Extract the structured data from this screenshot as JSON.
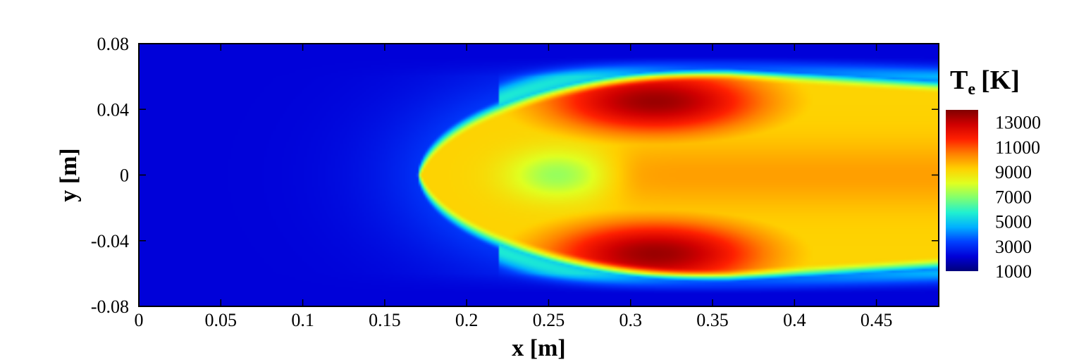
{
  "chart_data": {
    "type": "heatmap",
    "xlabel": "x [m]",
    "ylabel": "y [m]",
    "xlim": [
      0,
      0.488
    ],
    "ylim": [
      -0.08,
      0.08
    ],
    "x_ticks": [
      {
        "value": 0,
        "label": "0"
      },
      {
        "value": 0.05,
        "label": "0.05"
      },
      {
        "value": 0.1,
        "label": "0.1"
      },
      {
        "value": 0.15,
        "label": "0.15"
      },
      {
        "value": 0.2,
        "label": "0.2"
      },
      {
        "value": 0.25,
        "label": "0.25"
      },
      {
        "value": 0.3,
        "label": "0.3"
      },
      {
        "value": 0.35,
        "label": "0.35"
      },
      {
        "value": 0.4,
        "label": "0.4"
      },
      {
        "value": 0.45,
        "label": "0.45"
      }
    ],
    "y_ticks": [
      {
        "value": 0.08,
        "label": "0.08"
      },
      {
        "value": 0.04,
        "label": "0.04"
      },
      {
        "value": 0,
        "label": "0"
      },
      {
        "value": -0.04,
        "label": "-0.04"
      },
      {
        "value": -0.08,
        "label": "-0.08"
      }
    ],
    "colorbar": {
      "title": "T",
      "title_sub": "e",
      "title_unit": "[K]",
      "min": 1000,
      "max": 14000,
      "ticks": [
        {
          "value": 13000,
          "label": "13000"
        },
        {
          "value": 11000,
          "label": "11000"
        },
        {
          "value": 9000,
          "label": "9000"
        },
        {
          "value": 7000,
          "label": "7000"
        },
        {
          "value": 5000,
          "label": "5000"
        },
        {
          "value": 3000,
          "label": "3000"
        },
        {
          "value": 1000,
          "label": "1000"
        }
      ],
      "colormap": [
        "#00007a",
        "#0000d8",
        "#0040ff",
        "#00b0ff",
        "#20f0d0",
        "#80ff70",
        "#e0ff20",
        "#ffd000",
        "#ff8000",
        "#ff2000",
        "#d00000",
        "#800000"
      ]
    },
    "field": {
      "description_units": "Electron temperature T_e in K over x,y domain",
      "background_K": 2200,
      "plume_center_x": 0.33,
      "hot_lobes": [
        {
          "x": 0.315,
          "y": 0.045,
          "peak_K": 13600
        },
        {
          "x": 0.315,
          "y": -0.048,
          "peak_K": 13600
        }
      ],
      "centerline_K": 10000,
      "outlet_K": 9200
    }
  }
}
